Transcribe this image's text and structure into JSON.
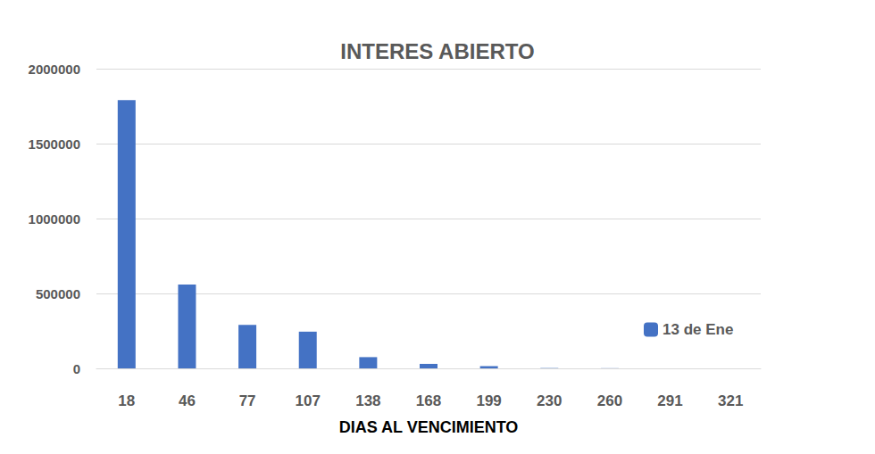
{
  "chart_data": {
    "type": "bar",
    "title": "INTERES ABIERTO",
    "x_label": "DIAS AL VENCIMIENTO",
    "categories": [
      "18",
      "46",
      "77",
      "107",
      "138",
      "168",
      "199",
      "230",
      "260",
      "291",
      "321"
    ],
    "series": [
      {
        "name": "13 de Ene",
        "color": "#4472c4",
        "values": [
          1790000,
          560000,
          290000,
          245000,
          75000,
          30000,
          15000,
          2000,
          1000,
          0,
          0
        ]
      }
    ],
    "ylim": [
      0,
      2000000
    ],
    "yticks": [
      0,
      500000,
      1000000,
      1500000,
      2000000
    ],
    "grid": true,
    "legend": "right"
  }
}
